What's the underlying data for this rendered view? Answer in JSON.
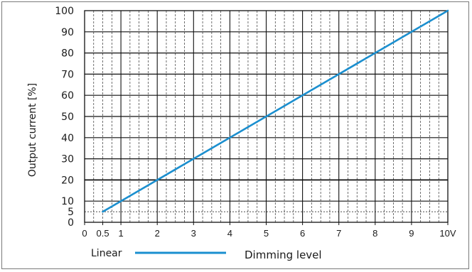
{
  "chart_data": {
    "type": "line",
    "title": "",
    "xlabel": "Dimming level",
    "ylabel": "Output current [%]",
    "xlim": [
      0,
      10
    ],
    "ylim": [
      0,
      100
    ],
    "x_ticks": [
      {
        "value": 0,
        "label": "0"
      },
      {
        "value": 0.5,
        "label": "0.5"
      },
      {
        "value": 1,
        "label": "1"
      },
      {
        "value": 2,
        "label": "2"
      },
      {
        "value": 3,
        "label": "3"
      },
      {
        "value": 4,
        "label": "4"
      },
      {
        "value": 5,
        "label": "5"
      },
      {
        "value": 6,
        "label": "6"
      },
      {
        "value": 7,
        "label": "7"
      },
      {
        "value": 8,
        "label": "8"
      },
      {
        "value": 9,
        "label": "9"
      },
      {
        "value": 10,
        "label": "10V"
      }
    ],
    "y_ticks": [
      0,
      5,
      10,
      20,
      30,
      40,
      50,
      60,
      70,
      80,
      90,
      100
    ],
    "grid": true,
    "legend": {
      "position": "bottom-left"
    },
    "series": [
      {
        "name": "Linear",
        "color": "#1b8fcf",
        "x": [
          0.5,
          10
        ],
        "y": [
          5,
          100
        ]
      }
    ]
  }
}
